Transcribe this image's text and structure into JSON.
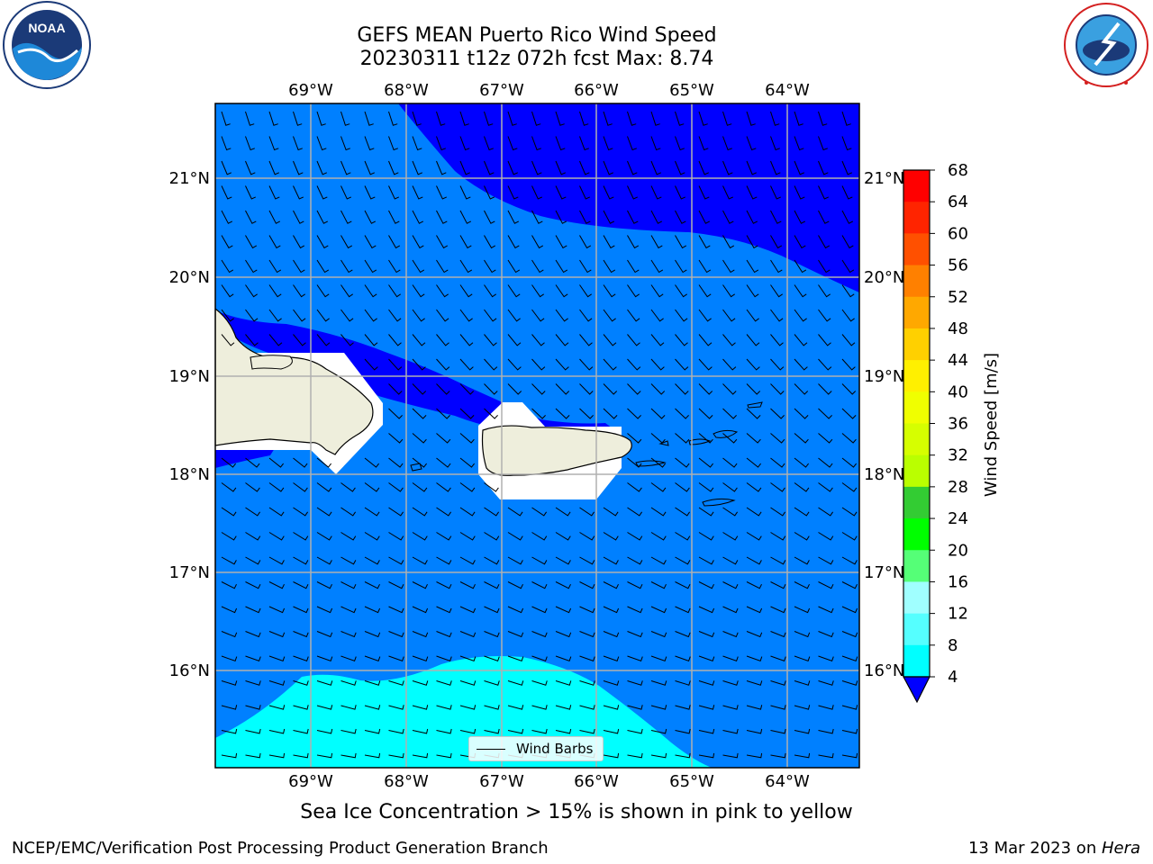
{
  "header": {
    "title_line1": "GEFS MEAN Puerto Rico Wind Speed",
    "title_line2": "20230311 t12z 072h fcst   Max: 8.74"
  },
  "logos": {
    "noaa_text": "NOAA",
    "noaa_ring_text": "NATIONAL OCEANIC AND ATMOSPHERIC ADMINISTRATION · U.S. DEPARTMENT OF COMMERCE",
    "nws_ring_text": "NATIONAL WEATHER SERVICE"
  },
  "map": {
    "lon_labels": [
      "69°W",
      "68°W",
      "67°W",
      "66°W",
      "65°W",
      "64°W"
    ],
    "lat_labels": [
      "21°N",
      "20°N",
      "19°N",
      "18°N",
      "17°N",
      "16°N"
    ],
    "legend_label": "Wind Barbs",
    "colors": {
      "band_4_8": "#0080ff",
      "band_below_4": "#0000ff",
      "band_8_12": "#00ffff",
      "land": "#eeeedc",
      "masked": "#ffffff",
      "grid": "#b0b0b0"
    }
  },
  "colorbar": {
    "label": "Wind Speed [m/s]",
    "ticks": [
      "68",
      "64",
      "60",
      "56",
      "52",
      "48",
      "44",
      "40",
      "36",
      "32",
      "28",
      "24",
      "20",
      "16",
      "12",
      "8",
      "4"
    ],
    "colors": [
      "#ff0000",
      "#ff2400",
      "#ff5000",
      "#ff8000",
      "#ffa800",
      "#ffd000",
      "#fff000",
      "#f0ff00",
      "#d6ff00",
      "#baff00",
      "#33cc33",
      "#00ff00",
      "#55ff77",
      "#a0ffff",
      "#55ffff",
      "#00ffff",
      "#0080ff"
    ],
    "under_color": "#0000ff"
  },
  "footer": {
    "caption": "Sea Ice Concentration > 15% is shown in pink to yellow",
    "credit": "NCEP/EMC/Verification Post Processing Product Generation Branch",
    "date_prefix": "13 Mar 2023 on ",
    "date_machine": "Hera"
  }
}
